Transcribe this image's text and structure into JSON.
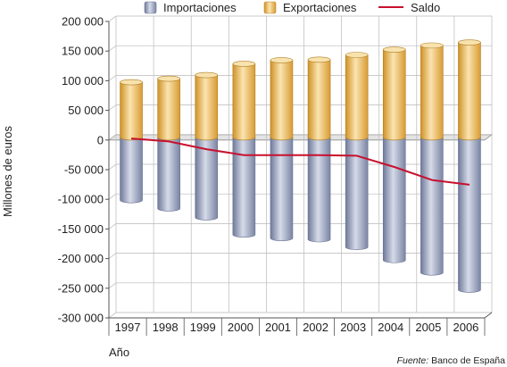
{
  "chart_data": {
    "type": "bar",
    "categories": [
      "1997",
      "1998",
      "1999",
      "2000",
      "2001",
      "2002",
      "2003",
      "2004",
      "2005",
      "2006"
    ],
    "series": [
      {
        "name": "Importaciones",
        "kind": "bar",
        "values": [
          -106000,
          -120000,
          -135000,
          -164000,
          -170000,
          -172000,
          -185000,
          -207000,
          -228000,
          -257000
        ]
      },
      {
        "name": "Exportaciones",
        "kind": "bar",
        "values": [
          93000,
          99000,
          105000,
          124000,
          130000,
          131000,
          139000,
          148000,
          155000,
          160000
        ]
      },
      {
        "name": "Saldo",
        "kind": "line",
        "values": [
          -2000,
          -7000,
          -20000,
          -30000,
          -30000,
          -30000,
          -31000,
          -50000,
          -72000,
          -80000
        ]
      }
    ],
    "yticks": [
      "200 000",
      "150 000",
      "100 000",
      "50 000",
      "0",
      "-50 000",
      "-100 000",
      "-150 000",
      "-200 000",
      "-250 000",
      "-300 000"
    ],
    "ylim": [
      -300000,
      200000
    ],
    "ylabel": "Millones de euros",
    "xlabel": "Año",
    "grid": true,
    "legend_position": "top",
    "source_prefix": "Fuente:",
    "source_name": "Banco de España",
    "colors": {
      "imports": "#8f99b6",
      "imports_light": "#d2d7e6",
      "exports": "#e7b24c",
      "exports_light": "#f8e2ae",
      "balance": "#c8102e",
      "grid": "#b9b9b9",
      "axis": "#555555"
    }
  }
}
